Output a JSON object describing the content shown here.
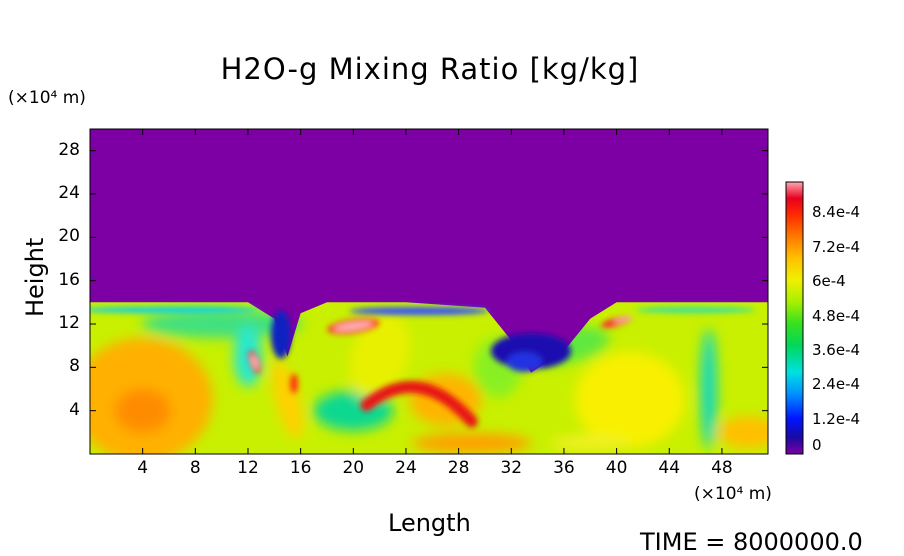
{
  "chart_data": {
    "type": "heatmap",
    "title": "H2O-g Mixing Ratio [kg/kg]",
    "xlabel": "Length",
    "ylabel": "Height",
    "x_unit": "(×10⁴ m)",
    "y_unit": "(×10⁴ m)",
    "xlim": [
      0,
      51.5
    ],
    "ylim": [
      0,
      30
    ],
    "x_ticks": [
      4,
      8,
      12,
      16,
      20,
      24,
      28,
      32,
      36,
      40,
      44,
      48
    ],
    "y_ticks": [
      4,
      8,
      12,
      16,
      20,
      24,
      28
    ],
    "colorbar": {
      "range": [
        0,
        0.00095
      ],
      "tick_labels": [
        "0",
        "1.2e-4",
        "2.4e-4",
        "3.6e-4",
        "4.8e-4",
        "6e-4",
        "7.2e-4",
        "8.4e-4"
      ],
      "tick_values": [
        0,
        0.00012,
        0.00024,
        0.00036,
        0.00048,
        0.0006,
        0.00072,
        0.00084
      ]
    },
    "dry_top_boundary_height": [
      [
        0,
        14.0
      ],
      [
        8,
        14.0
      ],
      [
        12,
        14.0
      ],
      [
        14,
        12.5
      ],
      [
        15,
        9.0
      ],
      [
        16,
        13.0
      ],
      [
        18,
        14.0
      ],
      [
        24,
        14.0
      ],
      [
        30,
        13.5
      ],
      [
        32,
        10.5
      ],
      [
        33.5,
        7.5
      ],
      [
        36,
        9.5
      ],
      [
        38,
        12.5
      ],
      [
        40,
        14.0
      ],
      [
        51.5,
        14.0
      ]
    ],
    "moist_features": [
      {
        "x": 4,
        "y": 4,
        "value": 0.00075
      },
      {
        "x": 12,
        "y": 8,
        "value": 0.0009
      },
      {
        "x": 19,
        "y": 11.5,
        "value": 0.0009
      },
      {
        "x": 24,
        "y": 5,
        "value": 0.0008
      },
      {
        "x": 40,
        "y": 12,
        "value": 0.0008
      },
      {
        "x": 29,
        "y": 1,
        "value": 0.0007
      }
    ]
  },
  "time_label": "TIME = 8000000.0"
}
